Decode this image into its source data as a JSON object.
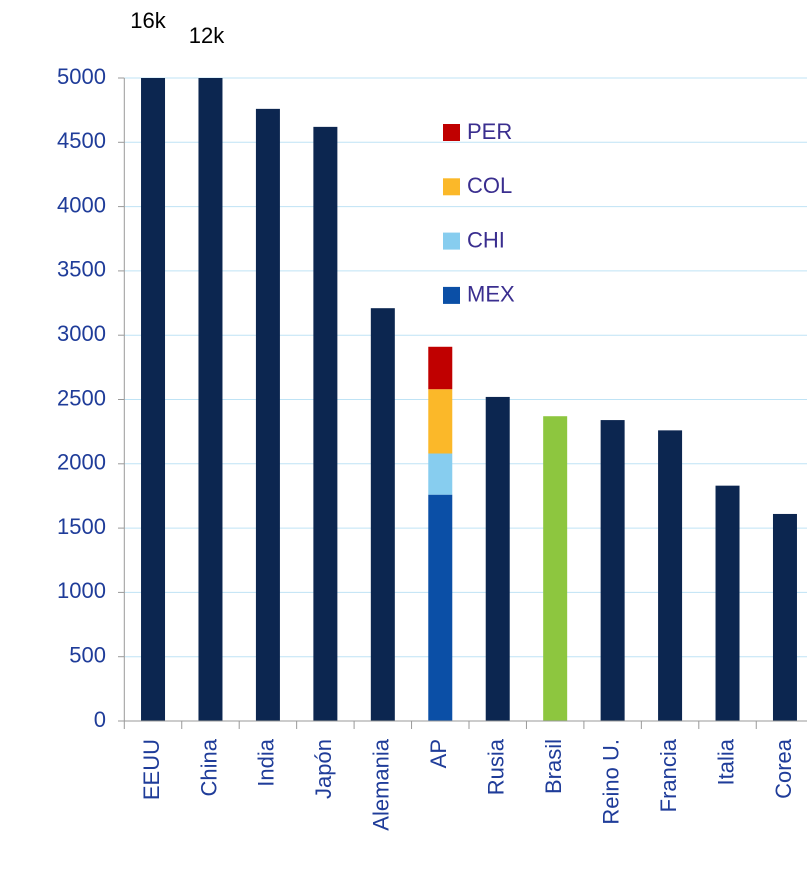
{
  "chart_data": {
    "type": "bar",
    "categories": [
      "EEUU",
      "China",
      "India",
      "Japón",
      "Alemania",
      "AP",
      "Rusia",
      "Brasil",
      "Reino U.",
      "Francia",
      "Italia",
      "Corea"
    ],
    "values": [
      16000,
      12000,
      4760,
      4620,
      3210,
      null,
      2520,
      2370,
      2340,
      2260,
      1830,
      1610
    ],
    "value_labels": [
      "16k",
      "12k",
      null,
      null,
      null,
      null,
      null,
      null,
      null,
      null,
      null,
      null
    ],
    "colors": [
      "#0c2650",
      "#0c2650",
      "#0c2650",
      "#0c2650",
      "#0c2650",
      null,
      "#0c2650",
      "#8dc63f",
      "#0c2650",
      "#0c2650",
      "#0c2650",
      "#0c2650"
    ],
    "series": [
      {
        "name": "MEX",
        "color": "#0b4fa6",
        "values": [
          null,
          null,
          null,
          null,
          null,
          1760,
          null,
          null,
          null,
          null,
          null,
          null
        ]
      },
      {
        "name": "CHI",
        "color": "#87cdef",
        "values": [
          null,
          null,
          null,
          null,
          null,
          320,
          null,
          null,
          null,
          null,
          null,
          null
        ]
      },
      {
        "name": "COL",
        "color": "#fbb829",
        "values": [
          null,
          null,
          null,
          null,
          null,
          500,
          null,
          null,
          null,
          null,
          null,
          null
        ]
      },
      {
        "name": "PER",
        "color": "#c00000",
        "values": [
          null,
          null,
          null,
          null,
          null,
          330,
          null,
          null,
          null,
          null,
          null,
          null
        ]
      }
    ],
    "ylim": [
      0,
      5000
    ],
    "yticks": [
      0,
      500,
      1000,
      1500,
      2000,
      2500,
      3000,
      3500,
      4000,
      4500,
      5000
    ],
    "grid": true
  }
}
